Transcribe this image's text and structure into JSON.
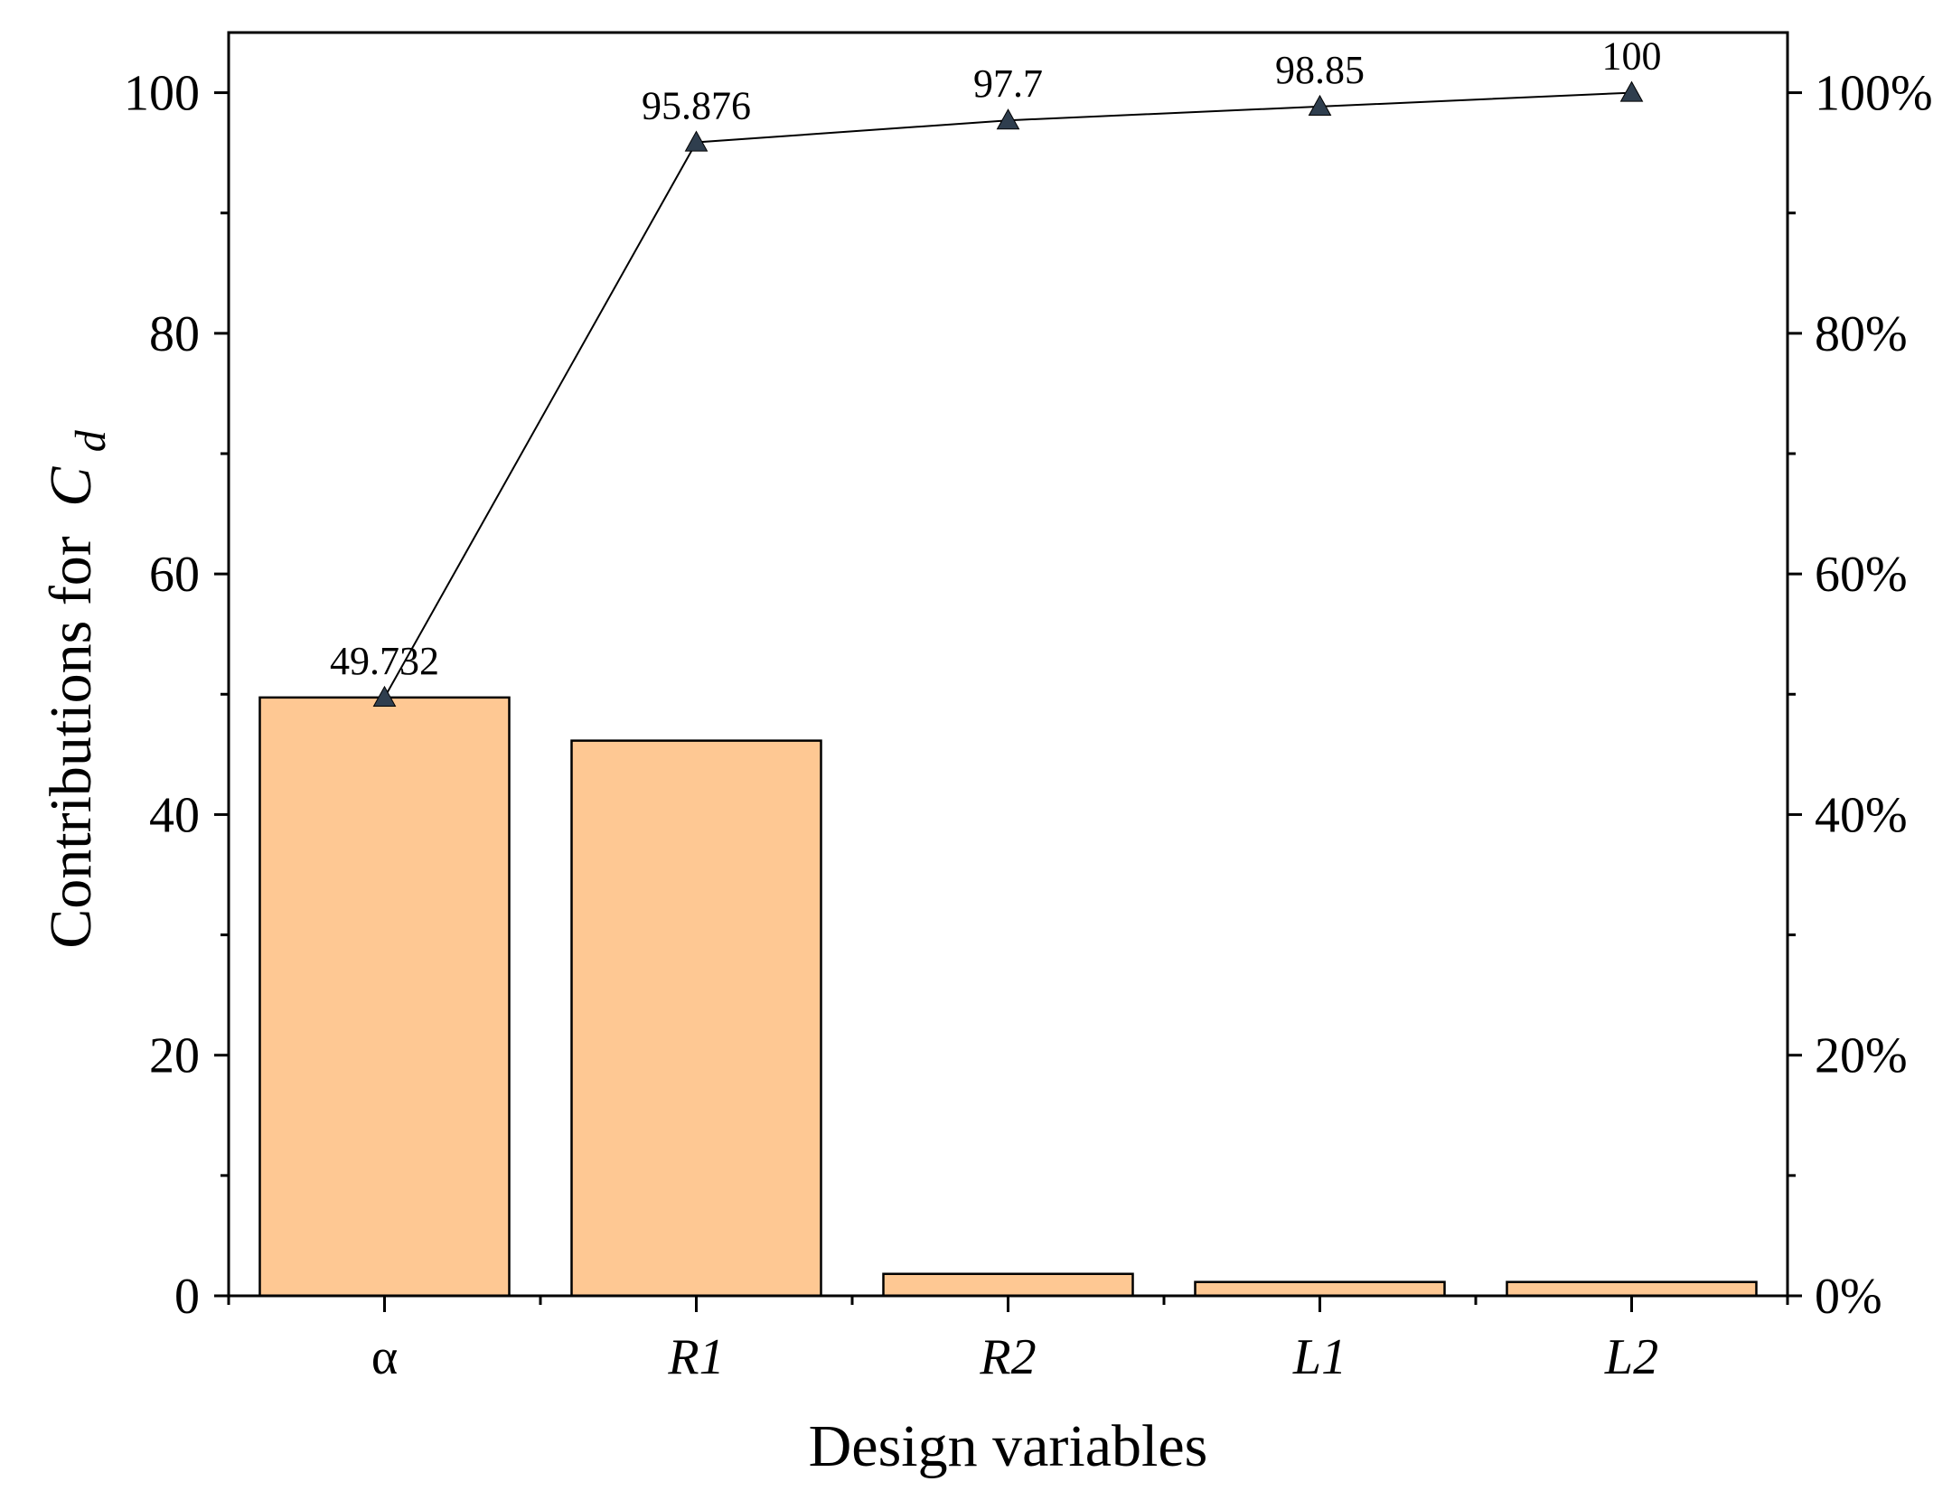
{
  "chart_data": {
    "type": "bar",
    "xlabel": "Design variables",
    "ylabel": "Contributions for",
    "ylabel_math": {
      "base": "C",
      "subscript": "d"
    },
    "categories": [
      "α",
      "R1",
      "R2",
      "L1",
      "L2"
    ],
    "italic_categories": [
      false,
      true,
      true,
      true,
      true
    ],
    "values": [
      49.732,
      46.144,
      1.824,
      1.15,
      1.15
    ],
    "cumulative": {
      "values": [
        49.732,
        95.876,
        97.7,
        98.85,
        100
      ],
      "labels": [
        "49.732",
        "95.876",
        "97.7",
        "98.85",
        "100"
      ],
      "marker": "triangle"
    },
    "ylim": [
      0,
      105
    ],
    "yticks": [
      0,
      20,
      40,
      60,
      80,
      100
    ],
    "ytick_labels": [
      "0",
      "20",
      "40",
      "60",
      "80",
      "100"
    ],
    "y2lim": [
      0,
      105
    ],
    "y2ticks": [
      0,
      20,
      40,
      60,
      80,
      100
    ],
    "y2tick_labels": [
      "0%",
      "20%",
      "40%",
      "60%",
      "80%",
      "100%"
    ],
    "grid": false,
    "colors": {
      "bar": "#fec893",
      "bar_edge": "#000000",
      "line": "#000000",
      "marker": "#2f3e4e"
    }
  }
}
